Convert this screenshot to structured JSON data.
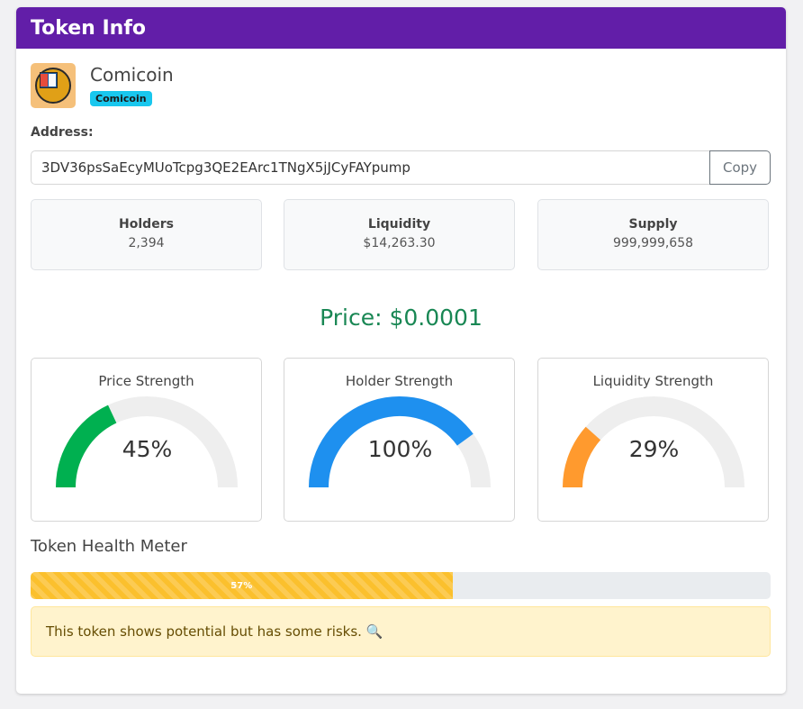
{
  "header": {
    "title": "Token Info"
  },
  "token": {
    "name": "Comicoin",
    "badge": "Comicoin",
    "logo_icon": "comic-book-coin-icon"
  },
  "address": {
    "label": "Address:",
    "value": "3DV36psSaEcyMUoTcpg3QE2EArc1TNgX5jJCyFAYpump",
    "copy_label": "Copy"
  },
  "stats": [
    {
      "label": "Holders",
      "value": "2,394"
    },
    {
      "label": "Liquidity",
      "value": "$14,263.30"
    },
    {
      "label": "Supply",
      "value": "999,999,658"
    }
  ],
  "price": {
    "text": "Price: $0.0001"
  },
  "gauges": [
    {
      "title": "Price Strength",
      "percent": 45,
      "display": "45%",
      "color": "#00b050"
    },
    {
      "title": "Holder Strength",
      "percent": 100,
      "display": "100%",
      "color": "#1e90ef"
    },
    {
      "title": "Liquidity Strength",
      "percent": 29,
      "display": "29%",
      "color": "#ff9a2e"
    }
  ],
  "health": {
    "title": "Token Health Meter",
    "percent": 57,
    "display": "57%"
  },
  "message": {
    "text": "This token shows potential but has some risks. 🔍"
  },
  "colors": {
    "header": "#621ea8",
    "price": "#198754",
    "gauge_track": "#eeeeee",
    "health_bar": "#fbc02d"
  }
}
